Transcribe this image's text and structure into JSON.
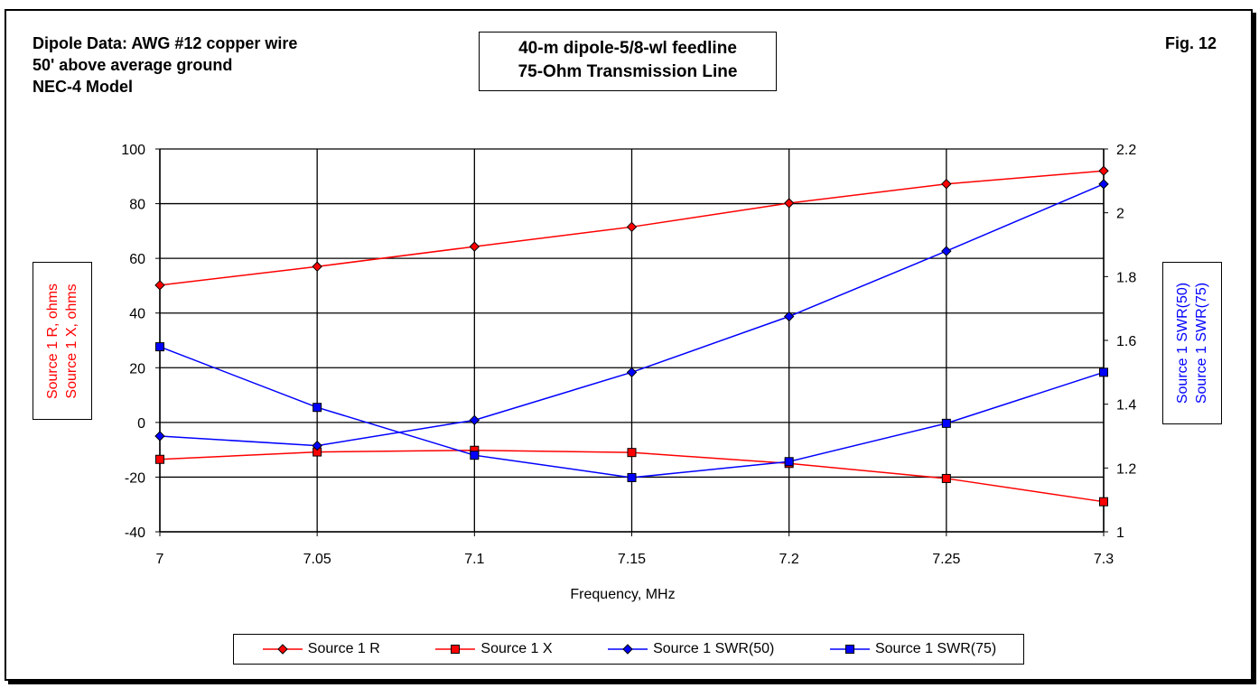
{
  "note_lines": [
    "Dipole Data:  AWG #12 copper wire",
    "50' above average ground",
    "NEC-4 Model"
  ],
  "title_lines": [
    "40-m dipole-5/8-wl feedline",
    "75-Ohm Transmission Line"
  ],
  "fig_label": "Fig. 12",
  "chart_data": {
    "type": "line",
    "xlabel": "Frequency, MHz",
    "ylabel_left": [
      "Source 1 R,  ohms",
      "Source 1 X,  ohms"
    ],
    "ylabel_right": [
      "Source 1 SWR(50)",
      "Source 1 SWR(75)"
    ],
    "x": [
      7,
      7.05,
      7.1,
      7.15,
      7.2,
      7.25,
      7.3
    ],
    "x_ticks": [
      "7",
      "7.05",
      "7.1",
      "7.15",
      "7.2",
      "7.25",
      "7.3"
    ],
    "y_left_ticks": [
      100,
      80,
      60,
      40,
      20,
      0,
      -20,
      -40
    ],
    "y_right_ticks": [
      "2.2",
      "2",
      "1.8",
      "1.6",
      "1.4",
      "1.2",
      "1"
    ],
    "ylim_left": [
      -40,
      100
    ],
    "ylim_right": [
      1,
      2.2
    ],
    "grid": true,
    "legend_position": "bottom",
    "series": [
      {
        "name": "Source 1 R",
        "axis": "left",
        "color": "#ff0000",
        "marker": "diamond",
        "values": [
          50.2,
          57.0,
          64.3,
          71.5,
          80.2,
          87.2,
          92.0
        ]
      },
      {
        "name": "Source 1 X",
        "axis": "left",
        "color": "#ff0000",
        "marker": "square",
        "values": [
          -13.5,
          -10.8,
          -10.2,
          -11.0,
          -15.0,
          -20.5,
          -29.0
        ]
      },
      {
        "name": "Source 1 SWR(50)",
        "axis": "right",
        "color": "#0000ff",
        "marker": "diamond",
        "values": [
          1.3,
          1.27,
          1.35,
          1.5,
          1.675,
          1.88,
          2.09
        ]
      },
      {
        "name": "Source 1 SWR(75)",
        "axis": "right",
        "color": "#0000ff",
        "marker": "square",
        "values": [
          1.58,
          1.39,
          1.24,
          1.17,
          1.22,
          1.34,
          1.5
        ]
      }
    ]
  }
}
